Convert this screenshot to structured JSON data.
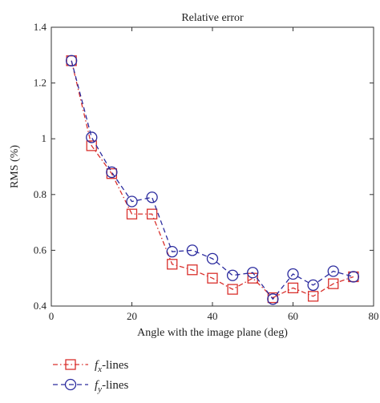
{
  "chart_data": {
    "type": "line",
    "title": "Relative error",
    "xlabel": "Angle with the image plane (deg)",
    "ylabel": "RMS (%)",
    "xlim": [
      0,
      80
    ],
    "ylim": [
      0.4,
      1.4
    ],
    "xticks": [
      0,
      20,
      40,
      60,
      80
    ],
    "yticks": [
      0.4,
      0.6,
      0.8,
      1,
      1.2,
      1.4
    ],
    "grid": false,
    "legend_position": "bottom-left, below plot",
    "x": [
      5,
      10,
      15,
      20,
      25,
      30,
      35,
      40,
      45,
      50,
      55,
      60,
      65,
      70,
      75
    ],
    "series": [
      {
        "name": "f_x-lines",
        "legend_main": "f",
        "legend_sub": "x",
        "legend_suffix": "-lines",
        "marker": "square",
        "line_style": "dash-dot",
        "color": "#d9302c",
        "values": [
          1.28,
          0.975,
          0.875,
          0.73,
          0.73,
          0.55,
          0.53,
          0.5,
          0.46,
          0.5,
          0.43,
          0.465,
          0.435,
          0.48,
          0.505
        ]
      },
      {
        "name": "f_y-lines",
        "legend_main": "f",
        "legend_sub": "y",
        "legend_suffix": "-lines",
        "marker": "circle",
        "line_style": "dashed",
        "color": "#2b2b9e",
        "values": [
          1.28,
          1.005,
          0.88,
          0.775,
          0.79,
          0.595,
          0.6,
          0.57,
          0.51,
          0.52,
          0.425,
          0.515,
          0.475,
          0.525,
          0.505
        ]
      }
    ]
  }
}
